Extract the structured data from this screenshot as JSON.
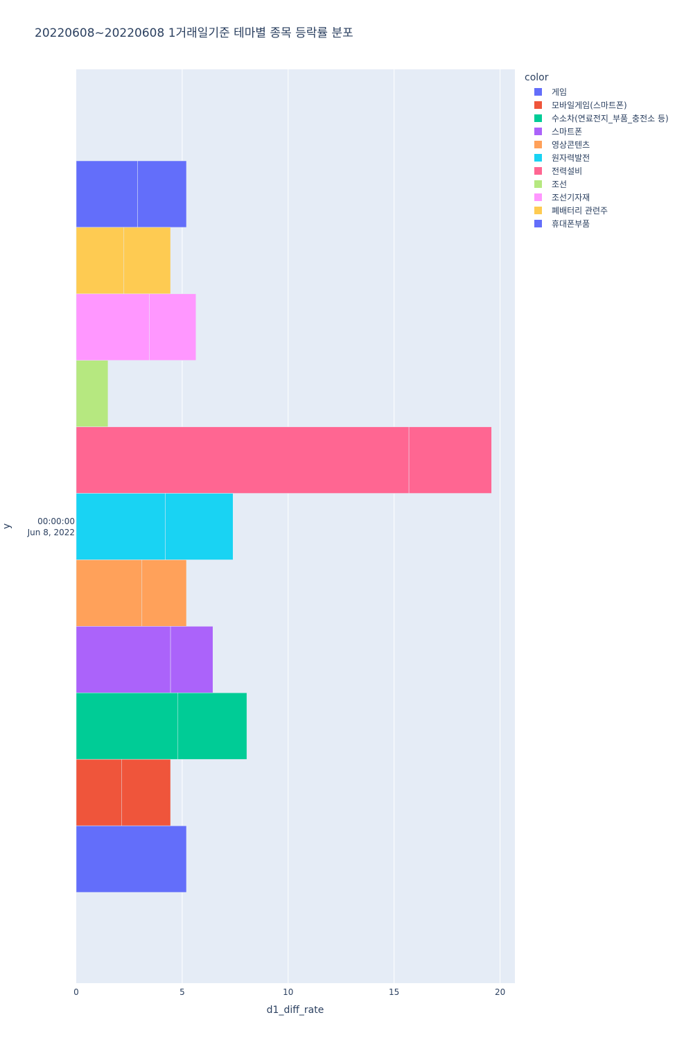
{
  "chart_data": {
    "type": "bar",
    "orientation": "horizontal",
    "barmode": "group",
    "title": "20220608~20220608 1거래일기준 테마별 종목 등락률 분포",
    "xlabel": "d1_diff_rate",
    "ylabel": "y",
    "xlim": [
      0,
      20.7
    ],
    "x_ticks": [
      0,
      5,
      10,
      15,
      20
    ],
    "y_tick_label_time": "00:00:00",
    "y_tick_label_date": "Jun 8, 2022",
    "grid": true,
    "legend_title": "color",
    "legend_position": "top-right",
    "series": [
      {
        "name": "게임",
        "color": "#636efa",
        "segments": [
          5.2
        ]
      },
      {
        "name": "모바일게임(스마트폰)",
        "color": "#EF553B",
        "segments": [
          2.15,
          2.3
        ]
      },
      {
        "name": "수소차(연료전지_부품_충전소 등)",
        "color": "#00cc96",
        "segments": [
          4.8,
          3.25
        ]
      },
      {
        "name": "스마트폰",
        "color": "#ab63fa",
        "segments": [
          4.45,
          2.0
        ]
      },
      {
        "name": "영상콘텐츠",
        "color": "#FFA15A",
        "segments": [
          3.1,
          2.1
        ]
      },
      {
        "name": "원자력발전",
        "color": "#19d3f3",
        "segments": [
          4.2,
          3.2
        ]
      },
      {
        "name": "전력설비",
        "color": "#FF6692",
        "segments": [
          15.7,
          3.9
        ]
      },
      {
        "name": "조선",
        "color": "#B6E880",
        "segments": [
          1.5
        ]
      },
      {
        "name": "조선기자재",
        "color": "#FF97FF",
        "segments": [
          3.45,
          2.2
        ]
      },
      {
        "name": "폐배터리 관련주",
        "color": "#FECB52",
        "segments": [
          2.25,
          2.2
        ]
      },
      {
        "name": "휴대폰부품",
        "color": "#636efa",
        "segments": [
          2.9,
          2.3
        ]
      }
    ]
  }
}
